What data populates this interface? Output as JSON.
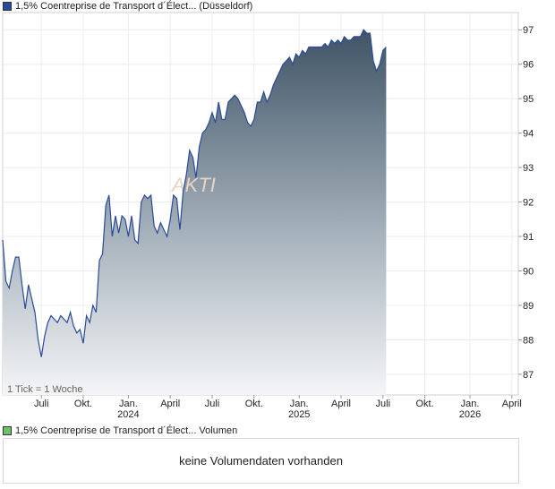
{
  "legend": {
    "price_label": "1,5% Coentreprise de Transport d´Élect...  (Düsseldorf)",
    "price_color": "#2a4a9a",
    "volume_label": "1,5% Coentreprise de Transport d´Élect...  Volumen",
    "volume_color": "#6fbf6f"
  },
  "tick_note": "1 Tick = 1 Woche",
  "watermark": "AKTI",
  "volume_empty": "keine Volumendaten vorhanden",
  "chart_data": {
    "type": "area",
    "y_ticks": [
      87,
      88,
      89,
      90,
      91,
      92,
      93,
      94,
      95,
      96,
      97
    ],
    "ylim": [
      86.4,
      97.5
    ],
    "x_ticks": [
      {
        "label": "Juli",
        "year": "",
        "t": 5
      },
      {
        "label": "Okt.",
        "year": "",
        "t": 18
      },
      {
        "label": "Jan.",
        "year": "2024",
        "t": 32
      },
      {
        "label": "April",
        "year": "",
        "t": 45
      },
      {
        "label": "Juli",
        "year": "",
        "t": 58
      },
      {
        "label": "Okt.",
        "year": "",
        "t": 71
      },
      {
        "label": "Jan.",
        "year": "2025",
        "t": 85
      },
      {
        "label": "April",
        "year": "",
        "t": 98
      },
      {
        "label": "Juli",
        "year": "",
        "t": 111
      },
      {
        "label": "Okt.",
        "year": "",
        "t": 124
      },
      {
        "label": "Jan.",
        "year": "2026",
        "t": 138
      },
      {
        "label": "April",
        "year": "",
        "t": 151
      }
    ],
    "xlim": [
      -7,
      153
    ],
    "series": [
      {
        "line_color": "#2a4a9a",
        "points": [
          [
            -7,
            90.9
          ],
          [
            -6,
            89.7
          ],
          [
            -5,
            89.5
          ],
          [
            -4,
            90.0
          ],
          [
            -3,
            90.4
          ],
          [
            -2,
            90.4
          ],
          [
            -1,
            89.6
          ],
          [
            0,
            88.9
          ],
          [
            1,
            89.6
          ],
          [
            2,
            89.2
          ],
          [
            3,
            88.8
          ],
          [
            4,
            88.0
          ],
          [
            5,
            87.5
          ],
          [
            6,
            88.1
          ],
          [
            7,
            88.5
          ],
          [
            8,
            88.7
          ],
          [
            9,
            88.6
          ],
          [
            10,
            88.5
          ],
          [
            11,
            88.7
          ],
          [
            12,
            88.6
          ],
          [
            13,
            88.5
          ],
          [
            14,
            88.8
          ],
          [
            15,
            88.4
          ],
          [
            16,
            88.2
          ],
          [
            17,
            88.3
          ],
          [
            18,
            87.9
          ],
          [
            19,
            88.7
          ],
          [
            20,
            88.5
          ],
          [
            21,
            89.0
          ],
          [
            22,
            88.8
          ],
          [
            23,
            90.3
          ],
          [
            24,
            90.5
          ],
          [
            25,
            91.9
          ],
          [
            26,
            92.2
          ],
          [
            27,
            91.0
          ],
          [
            28,
            91.6
          ],
          [
            29,
            91.1
          ],
          [
            30,
            91.6
          ],
          [
            31,
            91.5
          ],
          [
            32,
            91.0
          ],
          [
            33,
            91.6
          ],
          [
            34,
            90.9
          ],
          [
            35,
            90.8
          ],
          [
            36,
            92.0
          ],
          [
            37,
            92.2
          ],
          [
            38,
            92.1
          ],
          [
            39,
            92.2
          ],
          [
            40,
            91.3
          ],
          [
            41,
            91.1
          ],
          [
            42,
            91.4
          ],
          [
            43,
            91.2
          ],
          [
            44,
            91.0
          ],
          [
            45,
            91.5
          ],
          [
            46,
            92.2
          ],
          [
            47,
            92.1
          ],
          [
            48,
            91.2
          ],
          [
            49,
            92.3
          ],
          [
            50,
            92.8
          ],
          [
            51,
            93.5
          ],
          [
            52,
            93.3
          ],
          [
            53,
            92.7
          ],
          [
            54,
            93.6
          ],
          [
            55,
            94.0
          ],
          [
            56,
            94.1
          ],
          [
            57,
            94.3
          ],
          [
            58,
            94.6
          ],
          [
            59,
            94.3
          ],
          [
            60,
            94.9
          ],
          [
            61,
            94.4
          ],
          [
            62,
            94.4
          ],
          [
            63,
            94.9
          ],
          [
            64,
            95.0
          ],
          [
            65,
            95.1
          ],
          [
            66,
            95.0
          ],
          [
            67,
            94.8
          ],
          [
            68,
            94.6
          ],
          [
            69,
            94.3
          ],
          [
            70,
            94.2
          ],
          [
            71,
            94.4
          ],
          [
            72,
            94.9
          ],
          [
            73,
            94.9
          ],
          [
            74,
            95.2
          ],
          [
            75,
            94.9
          ],
          [
            76,
            95.1
          ],
          [
            77,
            95.4
          ],
          [
            78,
            95.6
          ],
          [
            79,
            95.8
          ],
          [
            80,
            96.0
          ],
          [
            81,
            96.1
          ],
          [
            82,
            96.2
          ],
          [
            83,
            96.0
          ],
          [
            84,
            96.3
          ],
          [
            85,
            96.2
          ],
          [
            86,
            96.4
          ],
          [
            87,
            96.3
          ],
          [
            88,
            96.5
          ],
          [
            89,
            96.5
          ],
          [
            90,
            96.5
          ],
          [
            91,
            96.5
          ],
          [
            92,
            96.5
          ],
          [
            93,
            96.6
          ],
          [
            94,
            96.5
          ],
          [
            95,
            96.7
          ],
          [
            96,
            96.6
          ],
          [
            97,
            96.7
          ],
          [
            98,
            96.6
          ],
          [
            99,
            96.8
          ],
          [
            100,
            96.7
          ],
          [
            101,
            96.7
          ],
          [
            102,
            96.8
          ],
          [
            103,
            96.8
          ],
          [
            104,
            96.8
          ],
          [
            105,
            97.0
          ],
          [
            106,
            96.9
          ],
          [
            107,
            96.9
          ],
          [
            108,
            96.1
          ],
          [
            109,
            95.8
          ],
          [
            110,
            96.0
          ],
          [
            111,
            96.4
          ],
          [
            112,
            96.5
          ]
        ]
      }
    ]
  }
}
